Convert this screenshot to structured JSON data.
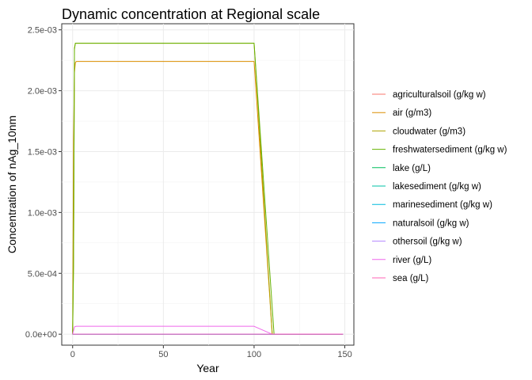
{
  "chart_data": {
    "type": "line",
    "title": "Dynamic concentration at Regional scale",
    "xlabel": "Year",
    "ylabel": "Concentration of nAg_10nm",
    "xlim": [
      -6,
      155
    ],
    "ylim": [
      -9e-05,
      0.00255
    ],
    "x_ticks": [
      0,
      50,
      100,
      150
    ],
    "x_tick_labels": [
      "0",
      "50",
      "100",
      "150"
    ],
    "y_ticks": [
      0,
      0.0005,
      0.001,
      0.0015,
      0.002,
      0.0025
    ],
    "y_tick_labels": [
      "0.0e+00",
      "5.0e-04",
      "1.0e-03",
      "1.5e-03",
      "2.0e-03",
      "2.5e-03"
    ],
    "grid": true,
    "legend_position": "right",
    "series": [
      {
        "name": "agriculturalsoil (g/kg w)",
        "color": "#F8766D",
        "x": [
          0,
          149
        ],
        "y": [
          0,
          0
        ]
      },
      {
        "name": "air (g/m3)",
        "color": "#DB8E00",
        "x": [
          0,
          0.5,
          1,
          1.5,
          2,
          100,
          110,
          149
        ],
        "y": [
          0,
          0.0016,
          0.00215,
          0.00223,
          0.00224,
          0.00224,
          0,
          0
        ]
      },
      {
        "name": "cloudwater (g/m3)",
        "color": "#AEA200",
        "x": [
          0,
          0.5,
          1,
          1.5,
          2,
          100,
          110,
          149
        ],
        "y": [
          0,
          0.0006,
          0.00235,
          0.00239,
          0.00239,
          0.00239,
          0,
          0
        ]
      },
      {
        "name": "freshwatersediment (g/kg w)",
        "color": "#64B200",
        "x": [
          0,
          0.5,
          1,
          1.5,
          2,
          100,
          111,
          149
        ],
        "y": [
          0,
          0.00056,
          0.00234,
          0.00239,
          0.00239,
          0.00239,
          0,
          0
        ]
      },
      {
        "name": "lake (g/L)",
        "color": "#00BD5C",
        "x": [
          0,
          149
        ],
        "y": [
          0,
          0
        ]
      },
      {
        "name": "lakesediment (g/kg w)",
        "color": "#00C1A7",
        "x": [
          0,
          149
        ],
        "y": [
          0,
          0
        ]
      },
      {
        "name": "marinesediment (g/kg w)",
        "color": "#00BADE",
        "x": [
          0,
          149
        ],
        "y": [
          0,
          0
        ]
      },
      {
        "name": "naturalsoil (g/kg w)",
        "color": "#00A6FF",
        "x": [
          0,
          149
        ],
        "y": [
          0,
          0
        ]
      },
      {
        "name": "othersoil (g/kg w)",
        "color": "#B385FF",
        "x": [
          0,
          149
        ],
        "y": [
          0,
          0
        ]
      },
      {
        "name": "river (g/L)",
        "color": "#EF67EB",
        "x": [
          0,
          1,
          2,
          100,
          110,
          149
        ],
        "y": [
          0,
          6e-05,
          6.5e-05,
          6.5e-05,
          0,
          0
        ]
      },
      {
        "name": "sea (g/L)",
        "color": "#FF63B6",
        "x": [
          0,
          149
        ],
        "y": [
          0,
          0
        ]
      }
    ]
  }
}
